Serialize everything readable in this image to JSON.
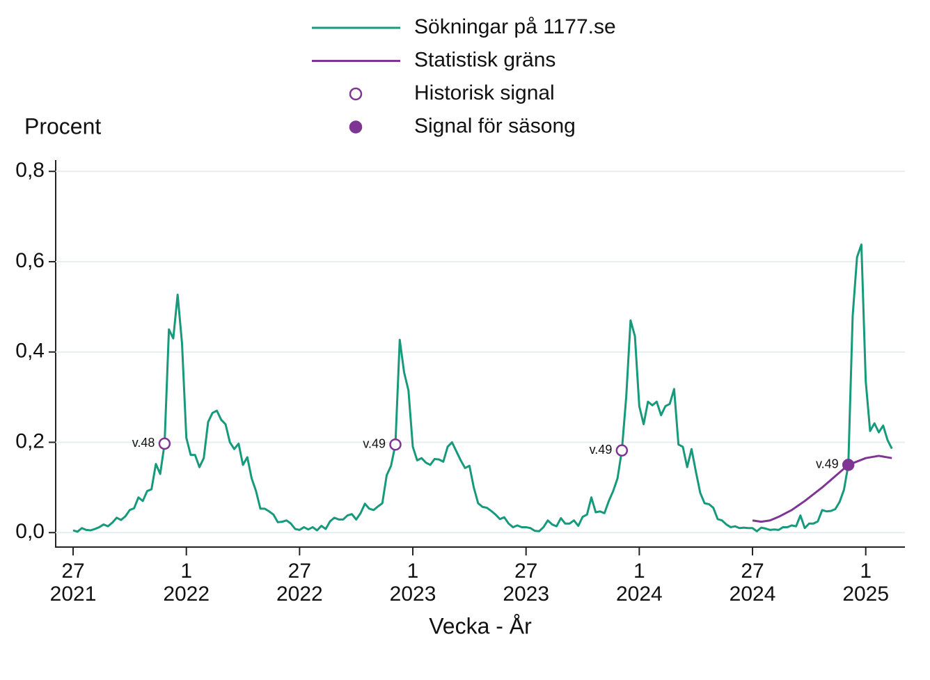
{
  "chart_data": {
    "type": "line",
    "ylabel": "Procent",
    "xlabel": "Vecka - År",
    "xlim": [
      -4,
      191
    ],
    "ylim": [
      -0.032,
      0.825
    ],
    "xticks": [
      {
        "value": 0,
        "label": "27\n2021"
      },
      {
        "value": 26,
        "label": "1\n2022"
      },
      {
        "value": 52,
        "label": "27\n2022"
      },
      {
        "value": 78,
        "label": "1\n2023"
      },
      {
        "value": 104,
        "label": "27\n2023"
      },
      {
        "value": 130,
        "label": "1\n2024"
      },
      {
        "value": 156,
        "label": "27\n2024"
      },
      {
        "value": 182,
        "label": "1\n2025"
      }
    ],
    "yticks": [
      {
        "value": 0,
        "label": "0,0"
      },
      {
        "value": 0.2,
        "label": "0,2"
      },
      {
        "value": 0.4,
        "label": "0,4"
      },
      {
        "value": 0.6,
        "label": "0,6"
      },
      {
        "value": 0.8,
        "label": "0,8"
      }
    ],
    "grid": true,
    "series": [
      {
        "name": "Sökningar på 1177.se",
        "color": "#17997c",
        "style": "line",
        "x": [
          0,
          1,
          2,
          3,
          4,
          5,
          6,
          7,
          8,
          9,
          10,
          11,
          12,
          13,
          14,
          15,
          16,
          17,
          18,
          19,
          20,
          21,
          22,
          23,
          24,
          25,
          26,
          27,
          28,
          29,
          30,
          31,
          32,
          33,
          34,
          35,
          36,
          37,
          38,
          39,
          40,
          41,
          42,
          43,
          44,
          45,
          46,
          47,
          48,
          49,
          50,
          51,
          52,
          53,
          54,
          55,
          56,
          57,
          58,
          59,
          60,
          61,
          62,
          63,
          64,
          65,
          66,
          67,
          68,
          69,
          70,
          71,
          72,
          73,
          74,
          75,
          76,
          77,
          78,
          79,
          80,
          81,
          82,
          83,
          84,
          85,
          86,
          87,
          88,
          89,
          90,
          91,
          92,
          93,
          94,
          95,
          96,
          97,
          98,
          99,
          100,
          101,
          102,
          103,
          104,
          105,
          106,
          107,
          108,
          109,
          110,
          111,
          112,
          113,
          114,
          115,
          116,
          117,
          118,
          119,
          120,
          121,
          122,
          123,
          124,
          125,
          126,
          127,
          128,
          129,
          130,
          131,
          132,
          133,
          134,
          135,
          136,
          137,
          138,
          139,
          140,
          141,
          142,
          143,
          144,
          145,
          146,
          147,
          148,
          149,
          150,
          151,
          152,
          153,
          154,
          155,
          156,
          157,
          158,
          159,
          160,
          161,
          162,
          163,
          164,
          165,
          166,
          167,
          168,
          169,
          170,
          171,
          172,
          173,
          174,
          175,
          176,
          177,
          178,
          179,
          180,
          181,
          182,
          183,
          184,
          185,
          186,
          187,
          188
        ],
        "values": [
          0.005,
          0.002,
          0.01,
          0.006,
          0.005,
          0.008,
          0.012,
          0.018,
          0.014,
          0.022,
          0.033,
          0.028,
          0.036,
          0.05,
          0.054,
          0.078,
          0.07,
          0.092,
          0.096,
          0.152,
          0.13,
          0.197,
          0.45,
          0.43,
          0.527,
          0.42,
          0.21,
          0.172,
          0.172,
          0.145,
          0.165,
          0.245,
          0.265,
          0.27,
          0.25,
          0.24,
          0.2,
          0.185,
          0.197,
          0.15,
          0.167,
          0.12,
          0.092,
          0.053,
          0.053,
          0.047,
          0.04,
          0.023,
          0.024,
          0.027,
          0.02,
          0.008,
          0.006,
          0.012,
          0.007,
          0.012,
          0.005,
          0.015,
          0.008,
          0.025,
          0.033,
          0.029,
          0.029,
          0.038,
          0.041,
          0.029,
          0.043,
          0.064,
          0.053,
          0.05,
          0.058,
          0.065,
          0.127,
          0.148,
          0.195,
          0.427,
          0.355,
          0.315,
          0.19,
          0.16,
          0.165,
          0.155,
          0.15,
          0.163,
          0.162,
          0.157,
          0.19,
          0.2,
          0.18,
          0.16,
          0.143,
          0.148,
          0.1,
          0.065,
          0.057,
          0.055,
          0.048,
          0.04,
          0.03,
          0.034,
          0.02,
          0.012,
          0.016,
          0.012,
          0.012,
          0.01,
          0.004,
          0.003,
          0.012,
          0.027,
          0.018,
          0.014,
          0.032,
          0.02,
          0.02,
          0.027,
          0.015,
          0.035,
          0.04,
          0.078,
          0.045,
          0.047,
          0.043,
          0.07,
          0.092,
          0.12,
          0.182,
          0.3,
          0.47,
          0.435,
          0.28,
          0.24,
          0.29,
          0.282,
          0.29,
          0.26,
          0.28,
          0.285,
          0.318,
          0.195,
          0.19,
          0.145,
          0.185,
          0.135,
          0.088,
          0.065,
          0.063,
          0.055,
          0.03,
          0.027,
          0.018,
          0.012,
          0.014,
          0.01,
          0.011,
          0.01,
          0.01,
          0.003,
          0.011,
          0.009,
          0.006,
          0.007,
          0.006,
          0.012,
          0.012,
          0.016,
          0.014,
          0.038,
          0.01,
          0.02,
          0.02,
          0.025,
          0.05,
          0.047,
          0.048,
          0.052,
          0.068,
          0.095,
          0.15,
          0.48,
          0.61,
          0.638,
          0.335,
          0.225,
          0.242,
          0.222,
          0.237,
          0.205,
          0.186
        ]
      },
      {
        "name": "Statistisk gräns",
        "color": "#7e3593",
        "style": "line",
        "x": [
          156,
          158,
          160,
          162,
          165,
          168,
          172,
          175,
          178,
          182,
          185,
          188
        ],
        "values": [
          0.027,
          0.024,
          0.027,
          0.035,
          0.05,
          0.07,
          0.1,
          0.125,
          0.15,
          0.165,
          0.17,
          0.165
        ]
      },
      {
        "name": "Historisk signal",
        "color": "#7e3593",
        "style": "open-circle",
        "x": [
          21,
          74,
          126
        ],
        "values": [
          0.197,
          0.195,
          0.182
        ],
        "labels": [
          "v.48",
          "v.49",
          "v.49"
        ]
      },
      {
        "name": "Signal för säsong",
        "color": "#7e3593",
        "style": "filled-circle",
        "x": [
          178
        ],
        "values": [
          0.15
        ],
        "labels": [
          "v.49"
        ]
      }
    ]
  }
}
